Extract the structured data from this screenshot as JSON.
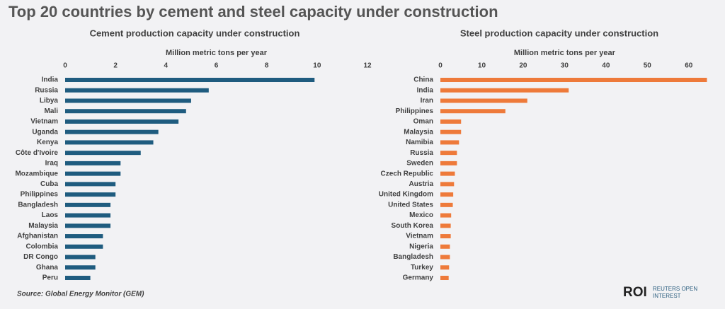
{
  "title": "Top 20 countries by cement and steel capacity under construction",
  "source": "Source:  Global Energy Monitor (GEM)",
  "logo": {
    "mark": "ROI",
    "line1": "REUTERS OPEN",
    "line2": "INTEREST"
  },
  "chart_data": [
    {
      "type": "hbar",
      "title": "Cement production capacity under construction",
      "x_label": "Million metric tons per year",
      "color": "#1f5c7f",
      "categories": [
        "India",
        "Russia",
        "Libya",
        "Mali",
        "Vietnam",
        "Uganda",
        "Kenya",
        "Côte d'Ivoire",
        "Iraq",
        "Mozambique",
        "Cuba",
        "Philippines",
        "Bangladesh",
        "Laos",
        "Malaysia",
        "Afghanistan",
        "Colombia",
        "DR Congo",
        "Ghana",
        "Peru"
      ],
      "values": [
        9.9,
        5.7,
        5.0,
        4.8,
        4.5,
        3.7,
        3.5,
        3.0,
        2.2,
        2.2,
        2.0,
        2.0,
        1.8,
        1.8,
        1.8,
        1.5,
        1.5,
        1.2,
        1.2,
        1.0
      ],
      "xlim": [
        0,
        12
      ],
      "xticks": [
        0,
        2,
        4,
        6,
        8,
        10,
        12
      ]
    },
    {
      "type": "hbar",
      "title": "Steel production capacity under construction",
      "x_label": "Million metric tons per year",
      "color": "#ee7a3a",
      "categories": [
        "China",
        "India",
        "Iran",
        "Philippines",
        "Oman",
        "Malaysia",
        "Namibia",
        "Russia",
        "Sweden",
        "Czech Republic",
        "Austria",
        "United Kingdom",
        "United States",
        "Mexico",
        "South Korea",
        "Vietnam",
        "Nigeria",
        "Bangladesh",
        "Turkey",
        "Germany"
      ],
      "values": [
        64.4,
        31,
        21,
        15.7,
        5.0,
        5.0,
        4.5,
        4.0,
        4.0,
        3.5,
        3.3,
        3.1,
        3.0,
        2.6,
        2.5,
        2.5,
        2.3,
        2.3,
        2.1,
        2.0
      ],
      "xlim": [
        0,
        65
      ],
      "xticks": [
        0,
        10,
        20,
        30,
        40,
        50,
        60
      ]
    }
  ]
}
